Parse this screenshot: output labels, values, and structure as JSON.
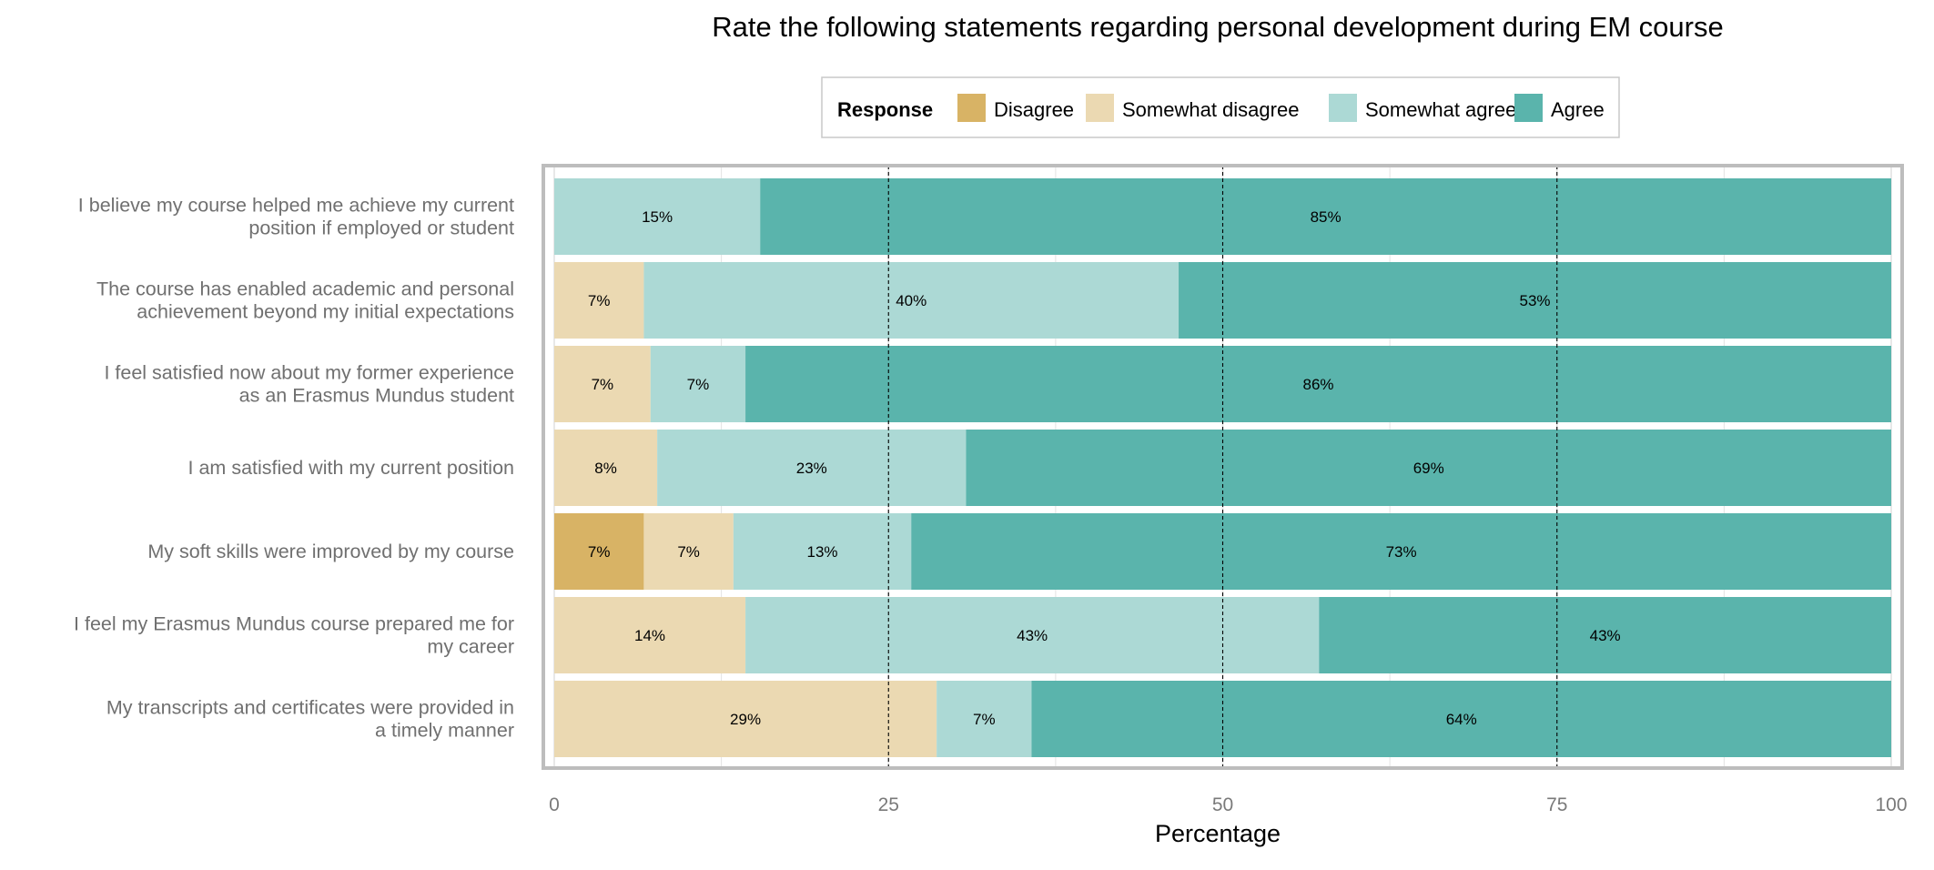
{
  "chart_data": {
    "type": "bar",
    "orientation": "horizontal",
    "stacked": true,
    "title": "Rate the following statements regarding personal development during EM course",
    "xlabel": "Percentage",
    "ylabel": "",
    "xlim": [
      0,
      100
    ],
    "xticks": [
      "0",
      "25",
      "50",
      "75",
      "100"
    ],
    "legend": {
      "title": "Response",
      "placement": "top-center",
      "entries": [
        "Disagree",
        "Somewhat disagree",
        "Somewhat agree",
        "Agree"
      ]
    },
    "colors": {
      "Disagree": "#d8b365",
      "Somewhat disagree": "#ebd9b2",
      "Somewhat agree": "#acd9d5",
      "Agree": "#5ab4ac",
      "grid": "#e3e3e3",
      "frame": "#bdbdbd",
      "refline": "#000000"
    },
    "categories": [
      [
        "I believe my course helped me achieve my current",
        "position if employed or student"
      ],
      [
        "The course has enabled academic and personal",
        "achievement beyond my initial expectations"
      ],
      [
        "I feel satisfied now about my former experience",
        "as an Erasmus Mundus student"
      ],
      [
        "I am satisfied with my current position"
      ],
      [
        "My soft skills were improved by my course"
      ],
      [
        "I feel my Erasmus Mundus course prepared me for",
        "my career"
      ],
      [
        "My transcripts and certificates were provided in",
        "a timely manner"
      ]
    ],
    "series": [
      {
        "name": "Disagree",
        "values": [
          0,
          0,
          0,
          0,
          6.7,
          0,
          0
        ]
      },
      {
        "name": "Somewhat disagree",
        "values": [
          0,
          6.7,
          7.2,
          7.7,
          6.7,
          14.3,
          28.6
        ]
      },
      {
        "name": "Somewhat agree",
        "values": [
          15.4,
          40,
          7.1,
          23.1,
          13.3,
          42.9,
          7.1
        ]
      },
      {
        "name": "Agree",
        "values": [
          84.6,
          53.3,
          85.7,
          69.2,
          73.3,
          42.8,
          64.3
        ]
      }
    ],
    "data_labels": [
      [
        null,
        null,
        "15%",
        "85%"
      ],
      [
        null,
        "7%",
        "40%",
        "53%"
      ],
      [
        null,
        "7%",
        "7%",
        "86%"
      ],
      [
        null,
        "8%",
        "23%",
        "69%"
      ],
      [
        "7%",
        "7%",
        "13%",
        "73%"
      ],
      [
        null,
        "14%",
        "43%",
        "43%"
      ],
      [
        null,
        "29%",
        "7%",
        "64%"
      ]
    ],
    "reference_lines": [
      25,
      50,
      75
    ],
    "grid": true
  }
}
